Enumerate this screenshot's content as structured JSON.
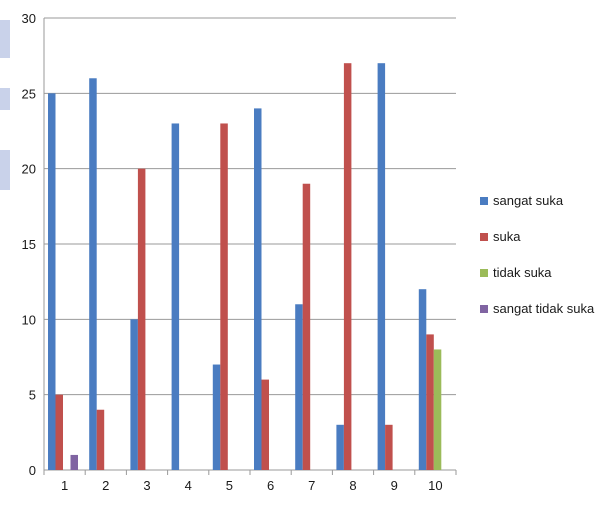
{
  "chart_data": {
    "type": "bar",
    "categories": [
      "1",
      "2",
      "3",
      "4",
      "5",
      "6",
      "7",
      "8",
      "9",
      "10"
    ],
    "series": [
      {
        "name": "sangat suka",
        "color": "#4a7cc1",
        "values": [
          25,
          26,
          10,
          23,
          7,
          24,
          11,
          3,
          27,
          12
        ]
      },
      {
        "name": "suka",
        "color": "#c0504d",
        "values": [
          5,
          4,
          20,
          0,
          23,
          6,
          19,
          27,
          3,
          9
        ]
      },
      {
        "name": "tidak suka",
        "color": "#9bbb59",
        "values": [
          0,
          0,
          0,
          0,
          0,
          0,
          0,
          0,
          0,
          8
        ]
      },
      {
        "name": "sangat tidak suka",
        "color": "#8064a2",
        "values": [
          1,
          0,
          0,
          0,
          0,
          0,
          0,
          0,
          0,
          0
        ]
      }
    ],
    "ylim": [
      0,
      30
    ],
    "yticks": [
      0,
      5,
      10,
      15,
      20,
      25,
      30
    ],
    "grid": true,
    "legend_position": "right",
    "xlabel": "",
    "ylabel": "",
    "title": ""
  }
}
